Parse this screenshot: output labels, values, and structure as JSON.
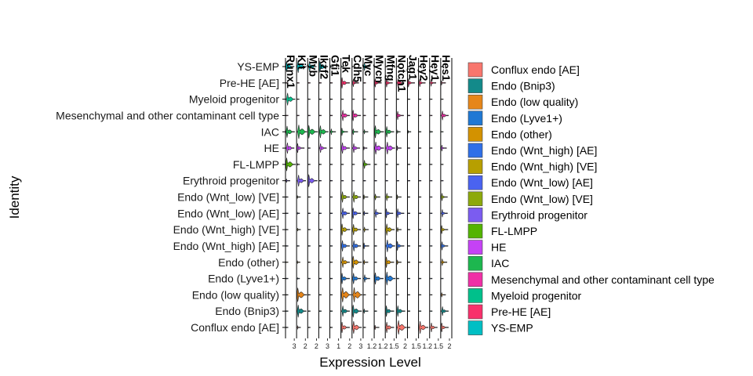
{
  "chart_data": {
    "type": "violin",
    "xlabel": "Expression Level",
    "ylabel": "Identity",
    "genes": [
      "Runx1",
      "Kit",
      "Myb",
      "Ikzf2",
      "Gfi1",
      "Tek",
      "Cdh5",
      "Myc",
      "Mycn",
      "Mfng",
      "Notch1",
      "Jag1",
      "Hey2",
      "Hey1",
      "Hes1"
    ],
    "x_max_ticks": [
      "3",
      "2",
      "2",
      "3",
      "1",
      "2",
      "3",
      "1.2",
      "1.2",
      "1.5",
      "2",
      "1.5",
      "1.2",
      "1.5",
      "2"
    ],
    "identities": [
      "YS-EMP",
      "Pre-HE [AE]",
      "Myeloid progenitor",
      "Mesenchymal and other contaminant cell type",
      "IAC",
      "HE",
      "FL-LMPP",
      "Erythroid progenitor",
      "Endo (Wnt_low) [VE]",
      "Endo (Wnt_low) [AE]",
      "Endo (Wnt_high) [VE]",
      "Endo (Wnt_high) [AE]",
      "Endo (other)",
      "Endo (Lyve1+)",
      "Endo (low quality)",
      "Endo (Bnip3)",
      "Conflux endo [AE]"
    ],
    "legend": [
      {
        "label": "Conflux endo [AE]",
        "color": "#F8766D"
      },
      {
        "label": "Endo (Bnip3)",
        "color": "#138A8A"
      },
      {
        "label": "Endo (low quality)",
        "color": "#E6861A"
      },
      {
        "label": "Endo (Lyve1+)",
        "color": "#1F78D4"
      },
      {
        "label": "Endo (other)",
        "color": "#D39200"
      },
      {
        "label": "Endo (Wnt_high) [AE]",
        "color": "#2F6FE8"
      },
      {
        "label": "Endo (Wnt_high) [VE]",
        "color": "#B79F00"
      },
      {
        "label": "Endo (Wnt_low) [AE]",
        "color": "#4A63F0"
      },
      {
        "label": "Endo (Wnt_low) [VE]",
        "color": "#8DA90B"
      },
      {
        "label": "Erythroid progenitor",
        "color": "#7B5CF0"
      },
      {
        "label": "FL-LMPP",
        "color": "#53B400"
      },
      {
        "label": "HE",
        "color": "#C542F5"
      },
      {
        "label": "IAC",
        "color": "#1DB74F"
      },
      {
        "label": "Mesenchymal and other contaminant cell type",
        "color": "#F02FA6"
      },
      {
        "label": "Myeloid progenitor",
        "color": "#00C08B"
      },
      {
        "label": "Pre-HE [AE]",
        "color": "#F8306B"
      },
      {
        "label": "YS-EMP",
        "color": "#00BFC4"
      }
    ],
    "expression_width_matrix": [
      [
        0.7,
        0.8,
        0.7,
        0.75,
        0.15,
        0.1,
        0.05,
        0.55,
        0.05,
        0.05,
        0.05,
        0.05,
        0.05,
        0.05,
        0.05
      ],
      [
        0.05,
        0.05,
        0.05,
        0.05,
        0.05,
        0.7,
        0.5,
        0.05,
        0.55,
        0.55,
        0.6,
        0.55,
        0.5,
        0.45,
        0.3
      ],
      [
        0.8,
        0.05,
        0.05,
        0.05,
        0.05,
        0.05,
        0.05,
        0.05,
        0.05,
        0.05,
        0.05,
        0.05,
        0.05,
        0.05,
        0.05
      ],
      [
        0.05,
        0.05,
        0.05,
        0.05,
        0.05,
        0.7,
        0.7,
        0.05,
        0.05,
        0.05,
        0.55,
        0.05,
        0.05,
        0.05,
        0.6
      ],
      [
        0.75,
        0.9,
        0.85,
        0.8,
        0.4,
        0.5,
        0.4,
        0.3,
        0.8,
        0.7,
        0.2,
        0.15,
        0.05,
        0.1,
        0.05
      ],
      [
        0.7,
        0.6,
        0.05,
        0.6,
        0.05,
        0.7,
        0.6,
        0.2,
        0.8,
        0.8,
        0.3,
        0.05,
        0.05,
        0.05,
        0.4
      ],
      [
        0.85,
        0.1,
        0.05,
        0.05,
        0.05,
        0.05,
        0.05,
        0.55,
        0.05,
        0.05,
        0.05,
        0.05,
        0.05,
        0.05,
        0.05
      ],
      [
        0.25,
        0.75,
        0.8,
        0.05,
        0.05,
        0.05,
        0.05,
        0.05,
        0.05,
        0.05,
        0.05,
        0.05,
        0.05,
        0.05,
        0.05
      ],
      [
        0.05,
        0.2,
        0.05,
        0.05,
        0.05,
        0.7,
        0.7,
        0.3,
        0.4,
        0.5,
        0.3,
        0.05,
        0.05,
        0.05,
        0.5
      ],
      [
        0.05,
        0.1,
        0.05,
        0.05,
        0.05,
        0.7,
        0.7,
        0.3,
        0.55,
        0.6,
        0.6,
        0.05,
        0.05,
        0.05,
        0.5
      ],
      [
        0.05,
        0.2,
        0.05,
        0.05,
        0.05,
        0.75,
        0.7,
        0.35,
        0.05,
        0.75,
        0.3,
        0.05,
        0.05,
        0.05,
        0.55
      ],
      [
        0.05,
        0.05,
        0.05,
        0.05,
        0.05,
        0.7,
        0.7,
        0.4,
        0.05,
        0.8,
        0.6,
        0.05,
        0.05,
        0.05,
        0.55
      ],
      [
        0.05,
        0.15,
        0.05,
        0.05,
        0.05,
        0.7,
        0.8,
        0.3,
        0.05,
        0.7,
        0.3,
        0.05,
        0.05,
        0.05,
        0.45
      ],
      [
        0.05,
        0.1,
        0.05,
        0.05,
        0.05,
        0.7,
        0.7,
        0.5,
        0.75,
        0.85,
        0.05,
        0.05,
        0.05,
        0.05,
        0.05
      ],
      [
        0.05,
        0.9,
        0.05,
        0.05,
        0.05,
        0.95,
        0.95,
        0.05,
        0.05,
        0.05,
        0.05,
        0.05,
        0.05,
        0.05,
        0.3
      ],
      [
        0.05,
        0.8,
        0.05,
        0.05,
        0.05,
        0.7,
        0.8,
        0.3,
        0.05,
        0.7,
        0.7,
        0.05,
        0.05,
        0.05,
        0.6
      ],
      [
        0.05,
        0.2,
        0.05,
        0.05,
        0.05,
        0.7,
        0.8,
        0.05,
        0.3,
        0.7,
        0.9,
        0.05,
        0.8,
        0.6,
        0.6
      ]
    ]
  }
}
